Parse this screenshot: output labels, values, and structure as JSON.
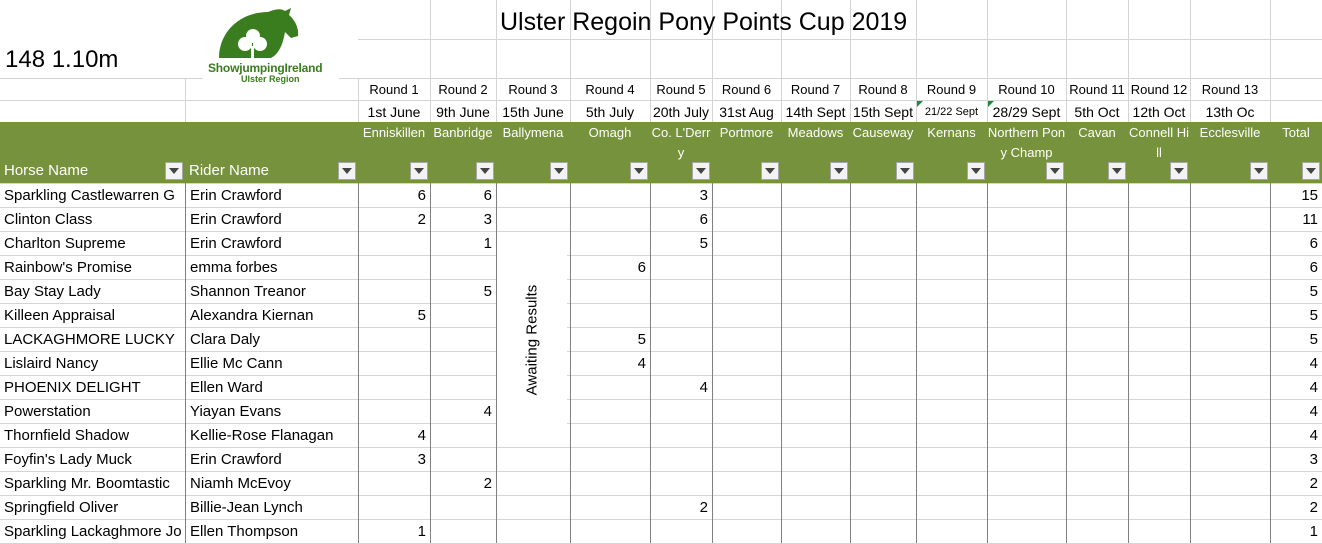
{
  "sheet": {
    "title": "Ulster Regoin Pony Points Cup 2019",
    "subtitle": "148 1.10m",
    "logo": {
      "brand": "ShowjumpingIreland",
      "region": "Ulster Region"
    },
    "awaiting_text": "Awaiting Results",
    "colors": {
      "header_green": "#76923c",
      "logo_green": "#3a7d1f",
      "gridline": "#d4d4d4"
    }
  },
  "columns": {
    "horse": "Horse Name",
    "rider": "Rider Name",
    "total": "Total",
    "rounds": [
      {
        "round": "Round 1",
        "date": "1st June",
        "venue": "Enniskillen"
      },
      {
        "round": "Round 2",
        "date": "9th June",
        "venue": "Banbridge"
      },
      {
        "round": "Round 3",
        "date": "15th June",
        "venue": "Ballymena"
      },
      {
        "round": "Round 4",
        "date": "5th July",
        "venue": "Omagh"
      },
      {
        "round": "Round 5",
        "date": "20th July",
        "venue": "Co. L'Derry"
      },
      {
        "round": "Round 6",
        "date": "31st Aug",
        "venue": "Portmore"
      },
      {
        "round": "Round 7",
        "date": "14th Sept",
        "venue": "Meadows"
      },
      {
        "round": "Round 8",
        "date": "15th Sept",
        "venue": "Causeway"
      },
      {
        "round": "Round 9",
        "date": "21/22 Sept",
        "venue": "Kernans"
      },
      {
        "round": "Round 10",
        "date": "28/29 Sept",
        "venue": "Northern Pony Champ"
      },
      {
        "round": "Round 11",
        "date": "5th Oct",
        "venue": "Cavan"
      },
      {
        "round": "Round 12",
        "date": "12th Oct",
        "venue": "Connell Hill"
      },
      {
        "round": "Round 13",
        "date": "13th Oc",
        "venue": "Ecclesville"
      }
    ]
  },
  "rows": [
    {
      "horse": "Sparkling Castlewarren G",
      "rider": "Erin Crawford",
      "scores": [
        "6",
        "6",
        "",
        "",
        "3",
        "",
        "",
        "",
        "",
        "",
        "",
        "",
        ""
      ],
      "total": "15"
    },
    {
      "horse": "Clinton Class",
      "rider": "Erin Crawford",
      "scores": [
        "2",
        "3",
        "",
        "",
        "6",
        "",
        "",
        "",
        "",
        "",
        "",
        "",
        ""
      ],
      "total": "11"
    },
    {
      "horse": "Charlton Supreme",
      "rider": "Erin Crawford",
      "scores": [
        "",
        "1",
        "",
        "",
        "5",
        "",
        "",
        "",
        "",
        "",
        "",
        "",
        ""
      ],
      "total": "6"
    },
    {
      "horse": "Rainbow's Promise",
      "rider": "emma forbes",
      "scores": [
        "",
        "",
        "",
        "6",
        "",
        "",
        "",
        "",
        "",
        "",
        "",
        "",
        ""
      ],
      "total": "6"
    },
    {
      "horse": "Bay Stay Lady",
      "rider": "Shannon Treanor",
      "scores": [
        "",
        "5",
        "",
        "",
        "",
        "",
        "",
        "",
        "",
        "",
        "",
        "",
        ""
      ],
      "total": "5"
    },
    {
      "horse": "Killeen Appraisal",
      "rider": "Alexandra Kiernan",
      "scores": [
        "5",
        "",
        "",
        "",
        "",
        "",
        "",
        "",
        "",
        "",
        "",
        "",
        ""
      ],
      "total": "5"
    },
    {
      "horse": "LACKAGHMORE LUCKY",
      "rider": "Clara Daly",
      "scores": [
        "",
        "",
        "",
        "5",
        "",
        "",
        "",
        "",
        "",
        "",
        "",
        "",
        ""
      ],
      "total": "5"
    },
    {
      "horse": "Lislaird Nancy",
      "rider": "Ellie Mc Cann",
      "scores": [
        "",
        "",
        "",
        "4",
        "",
        "",
        "",
        "",
        "",
        "",
        "",
        "",
        ""
      ],
      "total": "4"
    },
    {
      "horse": "PHOENIX DELIGHT",
      "rider": "Ellen Ward",
      "scores": [
        "",
        "",
        "",
        "",
        "4",
        "",
        "",
        "",
        "",
        "",
        "",
        "",
        ""
      ],
      "total": "4"
    },
    {
      "horse": "Powerstation",
      "rider": "Yiayan Evans",
      "scores": [
        "",
        "4",
        "",
        "",
        "",
        "",
        "",
        "",
        "",
        "",
        "",
        "",
        ""
      ],
      "total": "4"
    },
    {
      "horse": "Thornfield Shadow",
      "rider": "Kellie-Rose Flanagan",
      "scores": [
        "4",
        "",
        "",
        "",
        "",
        "",
        "",
        "",
        "",
        "",
        "",
        "",
        ""
      ],
      "total": "4"
    },
    {
      "horse": "Foyfin's Lady Muck",
      "rider": "Erin Crawford",
      "scores": [
        "3",
        "",
        "",
        "",
        "",
        "",
        "",
        "",
        "",
        "",
        "",
        "",
        ""
      ],
      "total": "3"
    },
    {
      "horse": "Sparkling Mr. Boomtastic",
      "rider": "Niamh McEvoy",
      "scores": [
        "",
        "2",
        "",
        "",
        "",
        "",
        "",
        "",
        "",
        "",
        "",
        "",
        ""
      ],
      "total": "2"
    },
    {
      "horse": "Springfield Oliver",
      "rider": "Billie-Jean Lynch",
      "scores": [
        "",
        "",
        "",
        "",
        "2",
        "",
        "",
        "",
        "",
        "",
        "",
        "",
        ""
      ],
      "total": "2"
    },
    {
      "horse": "Sparkling Lackaghmore Jo",
      "rider": "Ellen Thompson",
      "scores": [
        "1",
        "",
        "",
        "",
        "",
        "",
        "",
        "",
        "",
        "",
        "",
        "",
        ""
      ],
      "total": "1"
    }
  ]
}
